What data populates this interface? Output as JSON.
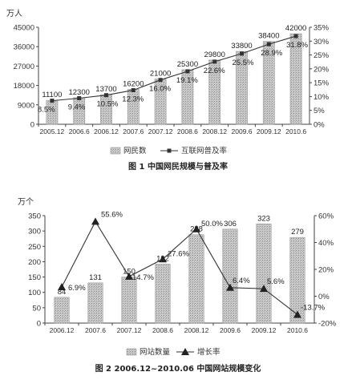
{
  "chart_data": [
    {
      "type": "bar",
      "caption": "图 1   中国网民规模与普及率",
      "ylabel_left": "万人",
      "categories": [
        "2005.12",
        "2006.6",
        "2006.12",
        "2007.6",
        "2007.12",
        "2008.6",
        "2008.12",
        "2009.6",
        "2009.12",
        "2010.6"
      ],
      "series": [
        {
          "name": "网民数",
          "kind": "bar",
          "axis": "left",
          "values": [
            11100,
            12300,
            13700,
            16200,
            21000,
            25300,
            29800,
            33800,
            38400,
            42000
          ],
          "labels": [
            "11100",
            "12300",
            "13700",
            "16200",
            "21000",
            "25300",
            "29800",
            "33800",
            "38400",
            "42000"
          ]
        },
        {
          "name": "互联网普及率",
          "kind": "line",
          "axis": "right",
          "values": [
            8.5,
            9.4,
            10.5,
            12.3,
            16.0,
            19.1,
            22.6,
            25.5,
            28.9,
            31.8
          ],
          "labels": [
            "8.5%",
            "9.4%",
            "10.5%",
            "12.3%",
            "16.0%",
            "19.1%",
            "22.6%",
            "25.5%",
            "28.9%",
            "31.8%"
          ]
        }
      ],
      "ylim_left": [
        0,
        45000
      ],
      "yticks_left": [
        "0",
        "9000",
        "18000",
        "27000",
        "36000",
        "45000"
      ],
      "ylim_right": [
        0,
        35
      ],
      "yticks_right": [
        "0%",
        "5%",
        "10%",
        "15%",
        "20%",
        "25%",
        "30%",
        "35%"
      ],
      "legend": [
        "网民数",
        "互联网普及率"
      ],
      "legend_position": "bottom"
    },
    {
      "type": "bar",
      "caption": "图 2   2006.12~2010.06 中国网站规模变化",
      "ylabel_left": "万个",
      "categories": [
        "2006.12",
        "2007.6",
        "2007.12",
        "2008.6",
        "2008.12",
        "2009.6",
        "2009.12",
        "2010.6"
      ],
      "series": [
        {
          "name": "网站数量",
          "kind": "bar",
          "axis": "left",
          "values": [
            84,
            131,
            150,
            192,
            288,
            306,
            323,
            279
          ],
          "labels": [
            "84",
            "131",
            "150",
            "192",
            "288",
            "306",
            "323",
            "279"
          ]
        },
        {
          "name": "增长率",
          "kind": "line",
          "axis": "right",
          "values": [
            6.9,
            55.6,
            14.7,
            27.6,
            50.0,
            6.4,
            5.6,
            -13.7
          ],
          "labels": [
            "6.9%",
            "55.6%",
            "14.7%",
            "27.6%",
            "50.0%",
            "6.4%",
            "5.6%",
            "-13.7%"
          ]
        }
      ],
      "ylim_left": [
        0,
        350
      ],
      "yticks_left": [
        "0",
        "50",
        "100",
        "150",
        "200",
        "250",
        "300",
        "350"
      ],
      "ylim_right": [
        -20,
        60
      ],
      "yticks_right": [
        "-20%",
        "0%",
        "20%",
        "40%",
        "60%"
      ],
      "legend": [
        "网站数量",
        "增长率"
      ],
      "legend_position": "bottom"
    }
  ]
}
